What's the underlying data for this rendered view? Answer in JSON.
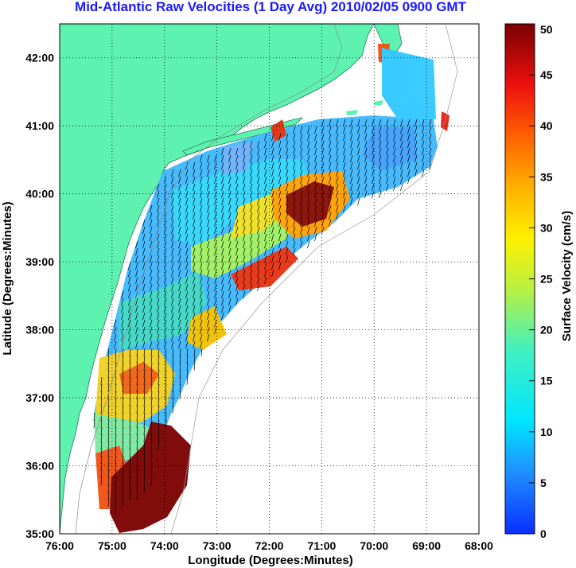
{
  "title": "Mid-Atlantic Raw Velocities (1 Day Avg) 2010/02/05 0900 GMT",
  "map": {
    "xlabel": "Longitude (Degrees:Minutes)",
    "ylabel": "Latitude (Degrees:Minutes)",
    "lon_ticks": [
      "76:00",
      "75:00",
      "74:00",
      "73:00",
      "72:00",
      "71:00",
      "70:00",
      "69:00",
      "68:00"
    ],
    "lat_ticks": [
      "35:00",
      "36:00",
      "37:00",
      "38:00",
      "39:00",
      "40:00",
      "41:00",
      "42:00"
    ],
    "lon_range": [
      -76,
      -68
    ],
    "lat_range": [
      35,
      42.5
    ]
  },
  "colorbar": {
    "label": "Surface Velocity (cm/s)",
    "ticks": [
      "0",
      "5",
      "10",
      "15",
      "20",
      "25",
      "30",
      "35",
      "40",
      "45",
      "50"
    ],
    "range": [
      0,
      50
    ]
  },
  "colors": {
    "land": "#5ef2b0",
    "title": "#1a1aff"
  }
}
